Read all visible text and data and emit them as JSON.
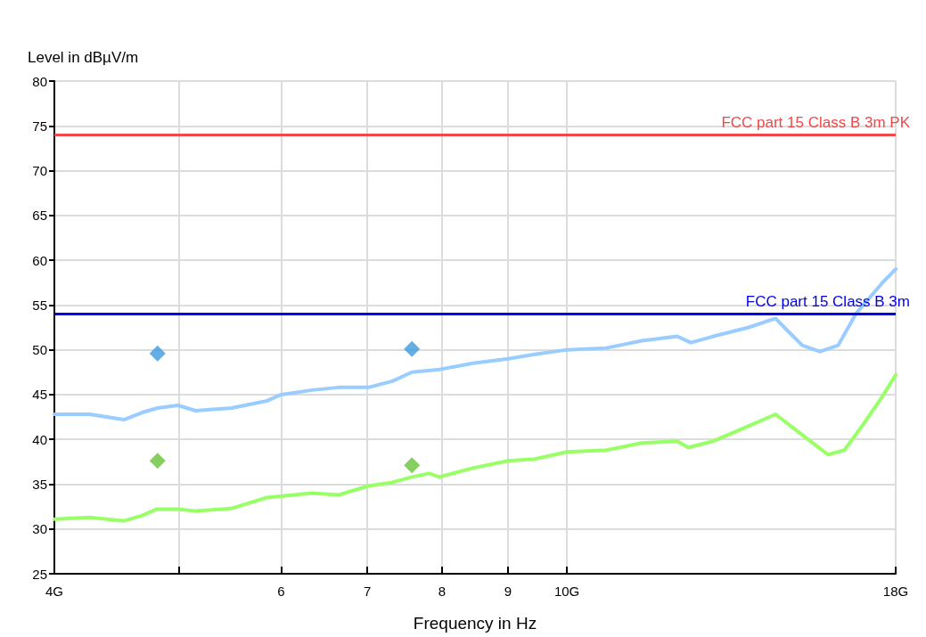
{
  "chart_data": {
    "type": "line",
    "xlabel": "Frequency in Hz",
    "ylabel": "Level in dBµV/m",
    "log": "x",
    "xlim": [
      4,
      18
    ],
    "xticks": [
      {
        "value": 4,
        "label": "4G"
      },
      {
        "value": 5,
        "label": null
      },
      6,
      7,
      8,
      9,
      {
        "value": 10,
        "label": "10G"
      },
      {
        "value": 18,
        "label": "18G"
      }
    ],
    "ylim": [
      25,
      80
    ],
    "yticks": [
      25,
      30,
      35,
      40,
      45,
      50,
      55,
      60,
      65,
      70,
      75,
      80
    ],
    "grid": true,
    "series": [
      {
        "color": "#99ccff",
        "marker": "none",
        "x": [
          4,
          4.26,
          4.53,
          4.68,
          4.81,
          4.99,
          5.15,
          5.49,
          5.85,
          6,
          6.34,
          6.65,
          7.01,
          7.32,
          7.58,
          7.96,
          8.45,
          9,
          9.44,
          10,
          10.73,
          11.43,
          12.18,
          12.48,
          12.99,
          13.84,
          14.52,
          14.75,
          15.23,
          15.72,
          16.24,
          16.76,
          17.58,
          18
        ],
        "values": [
          42.8,
          42.8,
          42.2,
          43,
          43.5,
          43.8,
          43.2,
          43.5,
          44.3,
          45,
          45.5,
          45.8,
          45.8,
          46.5,
          47.5,
          47.8,
          48.5,
          49,
          49.5,
          50,
          50.2,
          51,
          51.5,
          50.8,
          51.5,
          52.5,
          53.5,
          52.5,
          50.5,
          49.8,
          50.5,
          54,
          57.5,
          59
        ]
      },
      {
        "color": "#99ff66",
        "marker": "none",
        "x": [
          4,
          4.26,
          4.53,
          4.68,
          4.8,
          4.99,
          5.15,
          5.49,
          5.85,
          6.34,
          6.65,
          7.01,
          7.32,
          7.58,
          7.82,
          7.96,
          8.45,
          9,
          9.44,
          10,
          10.73,
          11.43,
          12.18,
          12.42,
          12.99,
          13.84,
          14.52,
          15.23,
          15.95,
          16.42,
          16.95,
          17.58,
          18
        ],
        "values": [
          31.1,
          31.3,
          30.9,
          31.5,
          32.2,
          32.2,
          32,
          32.3,
          33.5,
          34,
          33.8,
          34.8,
          35.2,
          35.8,
          36.2,
          35.8,
          36.8,
          37.6,
          37.8,
          38.6,
          38.8,
          39.6,
          39.8,
          39.1,
          39.8,
          41.5,
          42.8,
          40.5,
          38.3,
          38.8,
          41.5,
          44.8,
          47.2
        ]
      },
      {
        "type": "scatter",
        "color": "#3d9ae0",
        "marker": "diamond",
        "x": [
          4.81,
          7.58
        ],
        "values": [
          49.6,
          50.1
        ]
      },
      {
        "type": "scatter",
        "color": "#66c33a",
        "marker": "diamond",
        "x": [
          4.81,
          7.58
        ],
        "values": [
          37.6,
          37.1
        ]
      }
    ],
    "ref_lines": [
      {
        "axis": "y",
        "value": 74,
        "label": "FCC part 15 Class B 3m PK",
        "color": "#f04848"
      },
      {
        "axis": "y",
        "value": 54,
        "label": "FCC part 15 Class B 3m",
        "color": "#0000ee"
      }
    ]
  }
}
